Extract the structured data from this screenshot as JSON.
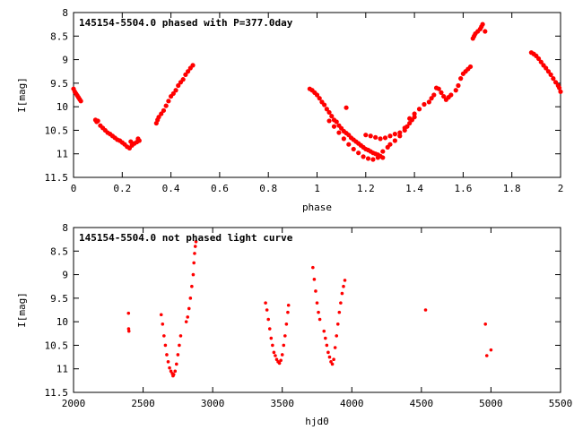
{
  "chart_data": [
    {
      "type": "scatter",
      "title": "145154-5504.0 phased with P=377.0day",
      "xlabel": "phase",
      "ylabel": "I[mag]",
      "xlim": [
        0,
        2
      ],
      "ylim": [
        11.5,
        8
      ],
      "y_inverted": true,
      "xticks": [
        "0",
        "0.2",
        "0.4",
        "0.6",
        "0.8",
        "1",
        "1.2",
        "1.4",
        "1.6",
        "1.8",
        "2"
      ],
      "yticks": [
        "8",
        "8.5",
        "9",
        "9.5",
        "10",
        "10.5",
        "11",
        "11.5"
      ],
      "grid": false,
      "marker_color": "#ff0000",
      "points": [
        [
          0.0,
          9.62
        ],
        [
          0.005,
          9.68
        ],
        [
          0.01,
          9.72
        ],
        [
          0.015,
          9.76
        ],
        [
          0.02,
          9.8
        ],
        [
          0.025,
          9.84
        ],
        [
          0.03,
          9.88
        ],
        [
          0.09,
          10.28
        ],
        [
          0.095,
          10.32
        ],
        [
          0.1,
          10.3
        ],
        [
          0.11,
          10.4
        ],
        [
          0.12,
          10.45
        ],
        [
          0.13,
          10.5
        ],
        [
          0.14,
          10.55
        ],
        [
          0.15,
          10.58
        ],
        [
          0.16,
          10.62
        ],
        [
          0.17,
          10.66
        ],
        [
          0.18,
          10.7
        ],
        [
          0.19,
          10.72
        ],
        [
          0.2,
          10.76
        ],
        [
          0.21,
          10.8
        ],
        [
          0.22,
          10.85
        ],
        [
          0.23,
          10.88
        ],
        [
          0.235,
          10.74
        ],
        [
          0.24,
          10.82
        ],
        [
          0.25,
          10.78
        ],
        [
          0.26,
          10.75
        ],
        [
          0.265,
          10.68
        ],
        [
          0.27,
          10.72
        ],
        [
          0.34,
          10.35
        ],
        [
          0.345,
          10.28
        ],
        [
          0.35,
          10.22
        ],
        [
          0.36,
          10.15
        ],
        [
          0.37,
          10.08
        ],
        [
          0.38,
          9.98
        ],
        [
          0.39,
          9.88
        ],
        [
          0.4,
          9.78
        ],
        [
          0.41,
          9.72
        ],
        [
          0.42,
          9.65
        ],
        [
          0.43,
          9.55
        ],
        [
          0.44,
          9.48
        ],
        [
          0.45,
          9.42
        ],
        [
          0.46,
          9.32
        ],
        [
          0.47,
          9.25
        ],
        [
          0.48,
          9.18
        ],
        [
          0.49,
          9.12
        ],
        [
          0.97,
          9.62
        ],
        [
          0.98,
          9.65
        ],
        [
          0.99,
          9.7
        ],
        [
          1.0,
          9.75
        ],
        [
          1.01,
          9.82
        ],
        [
          1.02,
          9.9
        ],
        [
          1.03,
          9.96
        ],
        [
          1.04,
          10.05
        ],
        [
          1.05,
          10.12
        ],
        [
          1.06,
          10.2
        ],
        [
          1.07,
          10.28
        ],
        [
          1.08,
          10.32
        ],
        [
          1.09,
          10.4
        ],
        [
          1.1,
          10.46
        ],
        [
          1.11,
          10.52
        ],
        [
          1.12,
          10.56
        ],
        [
          1.13,
          10.6
        ],
        [
          1.14,
          10.66
        ],
        [
          1.15,
          10.7
        ],
        [
          1.16,
          10.74
        ],
        [
          1.17,
          10.78
        ],
        [
          1.18,
          10.82
        ],
        [
          1.19,
          10.86
        ],
        [
          1.2,
          10.9
        ],
        [
          1.21,
          10.92
        ],
        [
          1.22,
          10.95
        ],
        [
          1.23,
          10.98
        ],
        [
          1.24,
          11.0
        ],
        [
          1.25,
          11.02
        ],
        [
          1.26,
          11.05
        ],
        [
          1.27,
          11.08
        ],
        [
          1.05,
          10.3
        ],
        [
          1.07,
          10.42
        ],
        [
          1.09,
          10.55
        ],
        [
          1.11,
          10.68
        ],
        [
          1.13,
          10.8
        ],
        [
          1.15,
          10.9
        ],
        [
          1.17,
          10.98
        ],
        [
          1.19,
          11.06
        ],
        [
          1.21,
          11.1
        ],
        [
          1.23,
          11.12
        ],
        [
          1.25,
          11.08
        ],
        [
          1.27,
          10.95
        ],
        [
          1.29,
          10.86
        ],
        [
          1.12,
          10.02
        ],
        [
          1.2,
          10.6
        ],
        [
          1.22,
          10.62
        ],
        [
          1.24,
          10.65
        ],
        [
          1.26,
          10.68
        ],
        [
          1.28,
          10.66
        ],
        [
          1.3,
          10.62
        ],
        [
          1.32,
          10.58
        ],
        [
          1.34,
          10.55
        ],
        [
          1.36,
          10.5
        ],
        [
          1.37,
          10.42
        ],
        [
          1.38,
          10.35
        ],
        [
          1.39,
          10.28
        ],
        [
          1.4,
          10.22
        ],
        [
          1.3,
          10.8
        ],
        [
          1.32,
          10.72
        ],
        [
          1.34,
          10.62
        ],
        [
          1.36,
          10.45
        ],
        [
          1.38,
          10.25
        ],
        [
          1.4,
          10.15
        ],
        [
          1.42,
          10.05
        ],
        [
          1.44,
          9.95
        ],
        [
          1.46,
          9.9
        ],
        [
          1.47,
          9.82
        ],
        [
          1.48,
          9.75
        ],
        [
          1.49,
          9.6
        ],
        [
          1.5,
          9.62
        ],
        [
          1.51,
          9.7
        ],
        [
          1.52,
          9.78
        ],
        [
          1.53,
          9.85
        ],
        [
          1.54,
          9.8
        ],
        [
          1.55,
          9.75
        ],
        [
          1.57,
          9.65
        ],
        [
          1.58,
          9.55
        ],
        [
          1.59,
          9.4
        ],
        [
          1.6,
          9.3
        ],
        [
          1.61,
          9.25
        ],
        [
          1.62,
          9.2
        ],
        [
          1.63,
          9.15
        ],
        [
          1.64,
          8.55
        ],
        [
          1.645,
          8.5
        ],
        [
          1.65,
          8.45
        ],
        [
          1.66,
          8.4
        ],
        [
          1.67,
          8.35
        ],
        [
          1.675,
          8.3
        ],
        [
          1.68,
          8.25
        ],
        [
          1.69,
          8.4
        ],
        [
          1.88,
          8.85
        ],
        [
          1.89,
          8.88
        ],
        [
          1.9,
          8.92
        ],
        [
          1.91,
          8.98
        ],
        [
          1.92,
          9.05
        ],
        [
          1.93,
          9.12
        ],
        [
          1.94,
          9.18
        ],
        [
          1.95,
          9.25
        ],
        [
          1.96,
          9.32
        ],
        [
          1.97,
          9.4
        ],
        [
          1.98,
          9.48
        ],
        [
          1.99,
          9.55
        ],
        [
          1.995,
          9.6
        ],
        [
          2.0,
          9.68
        ]
      ]
    },
    {
      "type": "scatter",
      "title": "145154-5504.0 not phased light curve",
      "xlabel": "hjd0",
      "ylabel": "I[mag]",
      "xlim": [
        2000,
        5500
      ],
      "ylim": [
        11.5,
        8
      ],
      "y_inverted": true,
      "xticks": [
        "2000",
        "2500",
        "3000",
        "3500",
        "4000",
        "4500",
        "5000",
        "5500"
      ],
      "yticks": [
        "8",
        "8.5",
        "9",
        "9.5",
        "10",
        "10.5",
        "11",
        "11.5"
      ],
      "grid": false,
      "marker_color": "#ff0000",
      "points": [
        [
          2395,
          9.82
        ],
        [
          2396,
          10.15
        ],
        [
          2398,
          10.2
        ],
        [
          2630,
          9.85
        ],
        [
          2640,
          10.05
        ],
        [
          2650,
          10.3
        ],
        [
          2660,
          10.5
        ],
        [
          2670,
          10.7
        ],
        [
          2680,
          10.85
        ],
        [
          2690,
          10.98
        ],
        [
          2700,
          11.05
        ],
        [
          2710,
          11.1
        ],
        [
          2715,
          11.15
        ],
        [
          2720,
          11.12
        ],
        [
          2730,
          11.05
        ],
        [
          2740,
          10.9
        ],
        [
          2750,
          10.7
        ],
        [
          2760,
          10.5
        ],
        [
          2770,
          10.3
        ],
        [
          2810,
          10.0
        ],
        [
          2820,
          9.9
        ],
        [
          2830,
          9.72
        ],
        [
          2840,
          9.5
        ],
        [
          2850,
          9.25
        ],
        [
          2860,
          9.0
        ],
        [
          2865,
          8.75
        ],
        [
          2870,
          8.55
        ],
        [
          2875,
          8.4
        ],
        [
          2880,
          8.3
        ],
        [
          3380,
          9.6
        ],
        [
          3390,
          9.75
        ],
        [
          3400,
          9.95
        ],
        [
          3410,
          10.15
        ],
        [
          3420,
          10.35
        ],
        [
          3430,
          10.5
        ],
        [
          3440,
          10.65
        ],
        [
          3450,
          10.72
        ],
        [
          3460,
          10.8
        ],
        [
          3470,
          10.85
        ],
        [
          3480,
          10.88
        ],
        [
          3490,
          10.82
        ],
        [
          3500,
          10.7
        ],
        [
          3510,
          10.5
        ],
        [
          3520,
          10.3
        ],
        [
          3530,
          10.05
        ],
        [
          3540,
          9.8
        ],
        [
          3545,
          9.65
        ],
        [
          3720,
          8.85
        ],
        [
          3730,
          9.1
        ],
        [
          3740,
          9.35
        ],
        [
          3750,
          9.6
        ],
        [
          3760,
          9.8
        ],
        [
          3770,
          9.95
        ],
        [
          3800,
          10.2
        ],
        [
          3810,
          10.35
        ],
        [
          3820,
          10.5
        ],
        [
          3830,
          10.65
        ],
        [
          3840,
          10.75
        ],
        [
          3850,
          10.85
        ],
        [
          3860,
          10.9
        ],
        [
          3870,
          10.8
        ],
        [
          3880,
          10.55
        ],
        [
          3890,
          10.3
        ],
        [
          3900,
          10.05
        ],
        [
          3910,
          9.8
        ],
        [
          3920,
          9.6
        ],
        [
          3930,
          9.4
        ],
        [
          3940,
          9.25
        ],
        [
          3950,
          9.12
        ],
        [
          4530,
          9.75
        ],
        [
          4960,
          10.05
        ],
        [
          4970,
          10.72
        ],
        [
          5000,
          10.6
        ]
      ]
    }
  ]
}
